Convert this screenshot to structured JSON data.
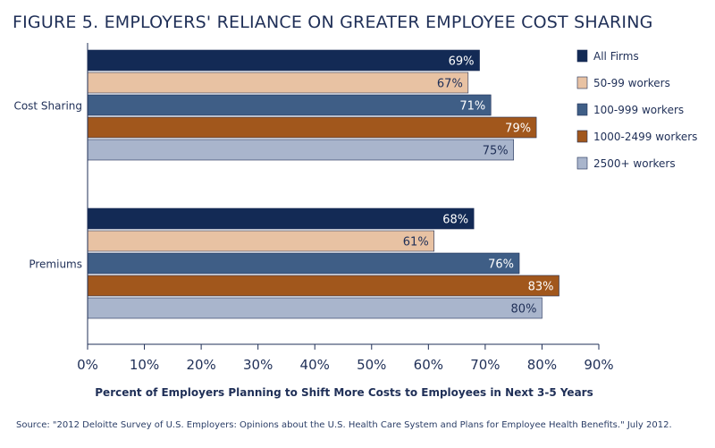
{
  "figure": {
    "title": "FIGURE 5. EMPLOYERS' RELIANCE ON GREATER EMPLOYEE COST SHARING",
    "source": "Source: \"2012 Deloitte Survey of U.S. Employers: Opinions about the U.S. Health Care System and Plans for Employee Health Benefits.\" July 2012."
  },
  "chart_data": {
    "type": "bar",
    "orientation": "horizontal",
    "title": "FIGURE 5. EMPLOYERS' RELIANCE ON GREATER EMPLOYEE COST SHARING",
    "xlabel": "Percent of Employers Planning to Shift More Costs to Employees in Next 3-5 Years",
    "ylabel": "",
    "categories": [
      "Cost Sharing",
      "Premiums"
    ],
    "xlim": [
      0,
      90
    ],
    "x_ticks": [
      0,
      10,
      20,
      30,
      40,
      50,
      60,
      70,
      80,
      90
    ],
    "tick_suffix": "%",
    "grid": false,
    "legend_position": "right",
    "series": [
      {
        "name": "All Firms",
        "values": [
          69,
          68
        ],
        "labels": [
          "69%",
          "68%"
        ],
        "color": "#132a55",
        "label_color": "light"
      },
      {
        "name": "50-99 workers",
        "values": [
          67,
          61
        ],
        "labels": [
          "67%",
          "61%"
        ],
        "color": "#e8c2a3",
        "label_color": "dark"
      },
      {
        "name": "100-999 workers",
        "values": [
          71,
          76
        ],
        "labels": [
          "71%",
          "76%"
        ],
        "color": "#3f5e86",
        "label_color": "light"
      },
      {
        "name": "1000-2499 workers",
        "values": [
          79,
          83
        ],
        "labels": [
          "79%",
          "83%"
        ],
        "color": "#a1571c",
        "label_color": "light"
      },
      {
        "name": "2500+ workers",
        "values": [
          75,
          80
        ],
        "labels": [
          "75%",
          "80%"
        ],
        "color": "#a9b5cc",
        "label_color": "dark"
      }
    ]
  }
}
